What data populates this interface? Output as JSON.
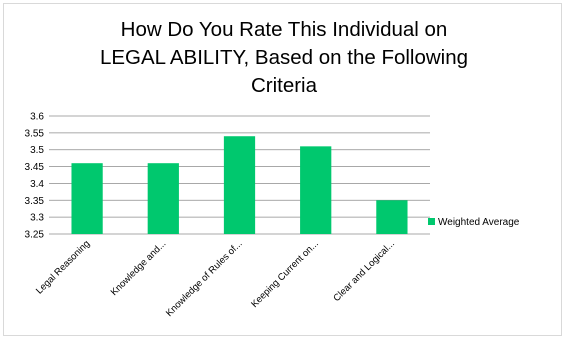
{
  "chart_data": {
    "type": "bar",
    "title_lines": [
      "How Do You Rate This Individual on",
      "LEGAL ABILITY, Based on the Following",
      "Criteria"
    ],
    "categories": [
      "Legal Reasoning",
      "Knowledge and...",
      "Knowledge of Rules of...",
      "Keeping Current on...",
      "Clear and Logical..."
    ],
    "series": [
      {
        "name": "Weighted Average",
        "values": [
          3.46,
          3.46,
          3.54,
          3.51,
          3.35
        ],
        "color": "#00c86e"
      }
    ],
    "ylim": [
      3.25,
      3.6
    ],
    "yticks": [
      "3.6",
      "3.55",
      "3.5",
      "3.45",
      "3.4",
      "3.35",
      "3.3",
      "3.25"
    ],
    "grid": true,
    "legend_position": "right",
    "xlabel": "",
    "ylabel": ""
  }
}
